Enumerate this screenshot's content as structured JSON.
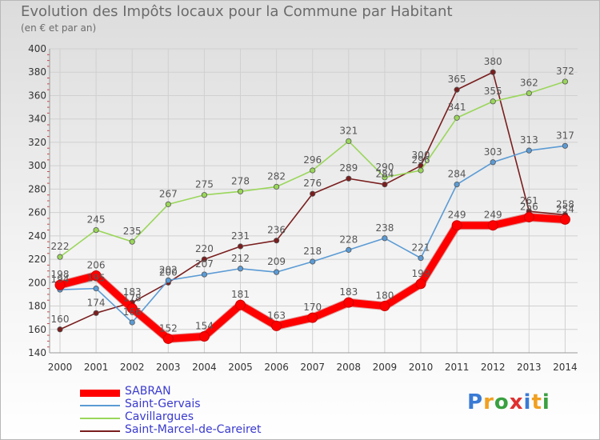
{
  "title": "Evolution des Impôts locaux pour la Commune par Habitant",
  "subtitle": "(en € et par an)",
  "logo": {
    "text": "Proxiti",
    "letters": [
      "P",
      "r",
      "o",
      "x",
      "i",
      "t",
      "i"
    ],
    "colors": [
      "#3a7bd5",
      "#f0a020",
      "#3aa040",
      "#e03030",
      "#3a7bd5",
      "#f0a020",
      "#3aa040"
    ]
  },
  "chart_data": {
    "type": "line",
    "title": "Evolution des Impôts locaux pour la Commune par Habitant",
    "subtitle": "(en € et par an)",
    "xlabel": "",
    "ylabel": "",
    "x": [
      "2000",
      "2001",
      "2002",
      "2003",
      "2004",
      "2005",
      "2006",
      "2007",
      "2008",
      "2009",
      "2010",
      "2011",
      "2012",
      "2013",
      "2014"
    ],
    "ylim": [
      140,
      400
    ],
    "yticks": [
      "140",
      "160",
      "180",
      "200",
      "220",
      "240",
      "260",
      "280",
      "300",
      "320",
      "340",
      "360",
      "380",
      "400"
    ],
    "grid": true,
    "legend_position": "bottom-left",
    "series": [
      {
        "name": "Saint-Marcel-de-Careiret",
        "color": "#7a1e1e",
        "values": [
          160,
          174,
          183,
          200,
          220,
          231,
          236,
          276,
          289,
          284,
          300,
          365,
          380,
          261,
          258
        ],
        "labels": [
          "160",
          "174",
          "183",
          "200",
          "220",
          "231",
          "236",
          "276",
          "289",
          "284",
          "300",
          "365",
          "380",
          "261",
          "258"
        ]
      },
      {
        "name": "Cavillargues",
        "color": "#9ad65a",
        "values": [
          222,
          245,
          235,
          267,
          275,
          278,
          282,
          296,
          321,
          290,
          296,
          341,
          355,
          362,
          372
        ],
        "labels": [
          "222",
          "245",
          "235",
          "267",
          "275",
          "278",
          "282",
          "296",
          "321",
          "290",
          "296",
          "341",
          "355",
          "362",
          "372"
        ]
      },
      {
        "name": "Saint-Gervais",
        "color": "#5b9bd5",
        "values": [
          194,
          195,
          166,
          202,
          207,
          212,
          209,
          218,
          228,
          238,
          221,
          284,
          303,
          313,
          317
        ],
        "labels": [
          "194",
          "195",
          "166",
          "202",
          "207",
          "212",
          "209",
          "218",
          "228",
          "238",
          "221",
          "284",
          "303",
          "313",
          "317"
        ]
      },
      {
        "name": "SABRAN",
        "color": "#ff0000",
        "values": [
          198,
          206,
          178,
          152,
          154,
          181,
          163,
          170,
          183,
          180,
          199,
          249,
          249,
          256,
          254
        ],
        "labels": [
          "198",
          "206",
          "178",
          "152",
          "154",
          "181",
          "163",
          "170",
          "183",
          "180",
          "199",
          "249",
          "249",
          "256",
          "254"
        ]
      }
    ]
  },
  "legend": [
    {
      "label": "SABRAN",
      "color": "#ff0000",
      "width": 9
    },
    {
      "label": "Saint-Gervais",
      "color": "#5b9bd5",
      "width": 2
    },
    {
      "label": "Cavillargues",
      "color": "#9ad65a",
      "width": 2
    },
    {
      "label": "Saint-Marcel-de-Careiret",
      "color": "#7a1e1e",
      "width": 2
    }
  ]
}
